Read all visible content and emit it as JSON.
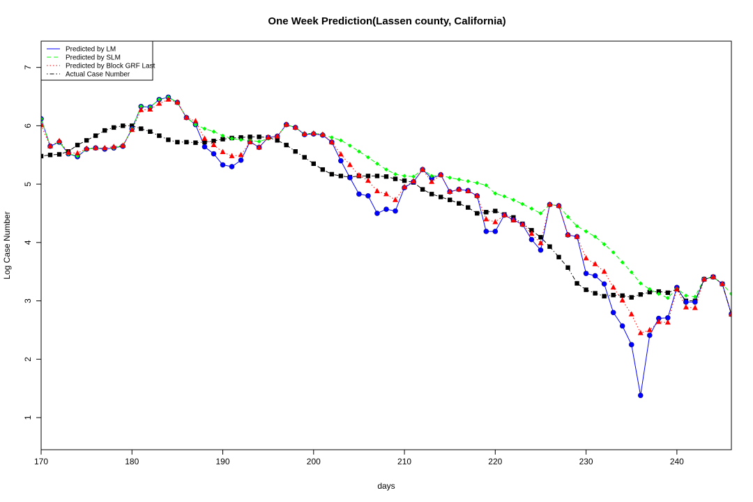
{
  "chart_data": {
    "type": "line",
    "title": "One Week Prediction(Lassen county, California)",
    "xlabel": "days",
    "ylabel": "Log Case Number",
    "xlim": [
      170,
      246
    ],
    "ylim": [
      0.45,
      7.45
    ],
    "xticks": [
      170,
      180,
      190,
      200,
      210,
      220,
      230,
      240
    ],
    "yticks": [
      1,
      2,
      3,
      4,
      5,
      6,
      7
    ],
    "grid": false,
    "legend_position": "top-left",
    "x": [
      170,
      171,
      172,
      173,
      174,
      175,
      176,
      177,
      178,
      179,
      180,
      181,
      182,
      183,
      184,
      185,
      186,
      187,
      188,
      189,
      190,
      191,
      192,
      193,
      194,
      195,
      196,
      197,
      198,
      199,
      200,
      201,
      202,
      203,
      204,
      205,
      206,
      207,
      208,
      209,
      210,
      211,
      212,
      213,
      214,
      215,
      216,
      217,
      218,
      219,
      220,
      221,
      222,
      223,
      224,
      225,
      226,
      227,
      228,
      229,
      230,
      231,
      232,
      233,
      234,
      235,
      236,
      237,
      238,
      239,
      240,
      241,
      242,
      243,
      244,
      245,
      246
    ],
    "series": [
      {
        "name": "Predicted by LM",
        "color": "#0000ff",
        "line_style": "solid",
        "marker": "circle",
        "values": [
          6.12,
          5.65,
          5.72,
          5.52,
          5.47,
          5.6,
          5.62,
          5.6,
          5.62,
          5.65,
          5.95,
          6.33,
          6.32,
          6.45,
          6.49,
          6.4,
          6.14,
          6.02,
          5.64,
          5.52,
          5.33,
          5.3,
          5.41,
          5.73,
          5.63,
          5.8,
          5.82,
          6.02,
          5.97,
          5.85,
          5.86,
          5.84,
          5.72,
          5.4,
          5.11,
          4.83,
          4.8,
          4.5,
          4.57,
          4.54,
          4.94,
          5.04,
          5.25,
          5.1,
          5.16,
          4.87,
          4.91,
          4.89,
          4.8,
          4.19,
          4.19,
          4.47,
          4.39,
          4.31,
          4.05,
          3.87,
          4.65,
          4.63,
          4.13,
          4.1,
          3.47,
          3.43,
          3.29,
          2.8,
          2.57,
          2.25,
          1.38,
          2.41,
          2.7,
          2.71,
          3.23,
          2.98,
          2.98,
          3.37,
          3.41,
          3.29,
          2.77
        ]
      },
      {
        "name": "Predicted by SLM",
        "color": "#00ff00",
        "line_style": "dashed",
        "marker": "diamond",
        "values": [
          6.12,
          5.65,
          5.72,
          5.52,
          5.48,
          5.6,
          5.62,
          5.61,
          5.62,
          5.66,
          5.95,
          6.33,
          6.32,
          6.45,
          6.49,
          6.4,
          6.14,
          6.02,
          5.95,
          5.9,
          5.83,
          5.78,
          5.76,
          5.75,
          5.73,
          5.78,
          5.82,
          6.02,
          5.97,
          5.86,
          5.87,
          5.85,
          5.8,
          5.75,
          5.66,
          5.56,
          5.46,
          5.35,
          5.25,
          5.17,
          5.14,
          5.13,
          5.25,
          5.14,
          5.15,
          5.11,
          5.08,
          5.05,
          5.02,
          4.98,
          4.84,
          4.79,
          4.73,
          4.66,
          4.58,
          4.5,
          4.65,
          4.63,
          4.44,
          4.28,
          4.19,
          4.1,
          3.97,
          3.83,
          3.66,
          3.49,
          3.3,
          3.2,
          3.12,
          3.05,
          3.21,
          3.09,
          3.07,
          3.38,
          3.41,
          3.29,
          3.12
        ]
      },
      {
        "name": "Predicted by Block GRF Last",
        "color": "#ff0000",
        "line_style": "dotted",
        "marker": "triangle",
        "values": [
          6.01,
          5.65,
          5.74,
          5.54,
          5.53,
          5.61,
          5.62,
          5.62,
          5.64,
          5.66,
          5.93,
          6.27,
          6.28,
          6.38,
          6.45,
          6.4,
          6.14,
          6.08,
          5.78,
          5.67,
          5.55,
          5.48,
          5.5,
          5.72,
          5.63,
          5.8,
          5.82,
          6.02,
          5.97,
          5.86,
          5.87,
          5.85,
          5.72,
          5.51,
          5.33,
          5.15,
          5.06,
          4.88,
          4.83,
          4.73,
          4.95,
          5.05,
          5.25,
          5.04,
          5.16,
          4.87,
          4.91,
          4.88,
          4.8,
          4.4,
          4.35,
          4.47,
          4.38,
          4.31,
          4.15,
          3.99,
          4.65,
          4.63,
          4.13,
          4.1,
          3.73,
          3.63,
          3.5,
          3.23,
          3.01,
          2.77,
          2.45,
          2.5,
          2.64,
          2.63,
          3.2,
          2.89,
          2.88,
          3.37,
          3.41,
          3.29,
          2.77
        ]
      },
      {
        "name": "Actual Case Number",
        "color": "#000000",
        "line_style": "dashdot",
        "marker": "square",
        "values": [
          5.48,
          5.5,
          5.51,
          5.56,
          5.67,
          5.75,
          5.83,
          5.92,
          5.97,
          6.0,
          6.0,
          5.95,
          5.9,
          5.83,
          5.76,
          5.72,
          5.72,
          5.71,
          5.72,
          5.74,
          5.77,
          5.79,
          5.8,
          5.81,
          5.81,
          5.8,
          5.75,
          5.67,
          5.56,
          5.46,
          5.35,
          5.25,
          5.17,
          5.14,
          5.12,
          5.14,
          5.14,
          5.14,
          5.13,
          5.09,
          5.06,
          5.03,
          4.91,
          4.83,
          4.78,
          4.73,
          4.67,
          4.6,
          4.5,
          4.52,
          4.54,
          4.48,
          4.43,
          4.32,
          4.21,
          4.09,
          3.93,
          3.75,
          3.57,
          3.3,
          3.19,
          3.13,
          3.08,
          3.1,
          3.09,
          3.06,
          3.11,
          3.15,
          3.16,
          3.14,
          3.2,
          3.0,
          3.0,
          3.37,
          3.41,
          3.29,
          2.77
        ]
      }
    ]
  }
}
